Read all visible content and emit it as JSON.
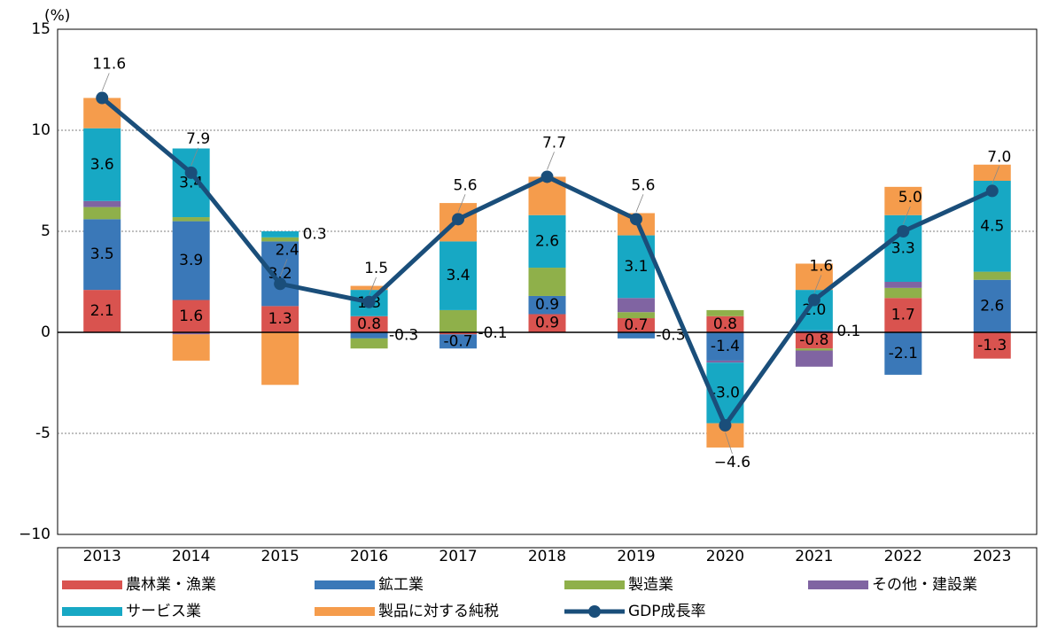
{
  "chart_data": {
    "type": "bar",
    "y_unit": "(%)",
    "categories": [
      "2013",
      "2014",
      "2015",
      "2016",
      "2017",
      "2018",
      "2019",
      "2020",
      "2021",
      "2022",
      "2023"
    ],
    "series": [
      {
        "name": "農林業・漁業",
        "color": "#d9534f",
        "values": [
          2.1,
          1.6,
          1.3,
          0.8,
          -0.1,
          0.9,
          0.7,
          0.8,
          -0.8,
          1.7,
          -1.3
        ],
        "value_labels": [
          "2.1",
          "1.6",
          "1.3",
          "0.8",
          "-0.1",
          "0.9",
          "0.7",
          "0.8",
          "-0.8",
          "1.7",
          "-1.3"
        ]
      },
      {
        "name": "鉱工業",
        "color": "#3a78b8",
        "values": [
          3.5,
          3.9,
          3.2,
          -0.3,
          -0.7,
          0.9,
          -0.3,
          -1.4,
          0.1,
          -2.1,
          2.6
        ],
        "value_labels": [
          "3.5",
          "3.9",
          "3.2",
          "-0.3",
          "-0.7",
          "0.9",
          "-0.3",
          "-1.4",
          "0.1",
          "-2.1",
          "2.6"
        ]
      },
      {
        "name": "製造業",
        "color": "#8fb04a",
        "values": [
          0.6,
          0.2,
          0.2,
          -0.5,
          1.1,
          1.4,
          0.3,
          0.3,
          -0.1,
          0.5,
          0.4
        ]
      },
      {
        "name": "その他・建設業",
        "color": "#8064a2",
        "values": [
          0.3,
          -0.1,
          0,
          0,
          0,
          0,
          0.7,
          -0.1,
          -0.8,
          0.3,
          0
        ]
      },
      {
        "name": "サービス業",
        "color": "#17a8c4",
        "values": [
          3.6,
          3.4,
          0.3,
          1.3,
          3.4,
          2.6,
          3.1,
          -3.0,
          2.0,
          3.3,
          4.5
        ],
        "value_labels": [
          "3.6",
          "3.4",
          "0.3",
          "1.3",
          "3.4",
          "2.6",
          "3.1",
          "-3.0",
          "2.0",
          "3.3",
          "4.5"
        ]
      },
      {
        "name": "製品に対する純税",
        "color": "#f59c4c",
        "values": [
          1.5,
          -1.3,
          -2.6,
          0.2,
          1.9,
          1.9,
          1.1,
          -1.2,
          1.3,
          1.4,
          0.8
        ]
      },
      {
        "name": "GDP成長率",
        "type": "line",
        "color": "#1a4e7a",
        "values": [
          11.6,
          7.9,
          2.4,
          1.5,
          5.6,
          7.7,
          5.6,
          -4.6,
          1.6,
          5.0,
          7.0
        ],
        "value_labels": [
          "11.6",
          "7.9",
          "2.4",
          "1.5",
          "5.6",
          "7.7",
          "5.6",
          "−4.6",
          "1.6",
          "5.0",
          "7.0"
        ]
      }
    ],
    "ylim": [
      -10,
      15
    ],
    "yticks": [
      {
        "value": -10,
        "label": "−10"
      },
      -5,
      0,
      5,
      10,
      15
    ],
    "grid": true,
    "legend": "bottom"
  }
}
